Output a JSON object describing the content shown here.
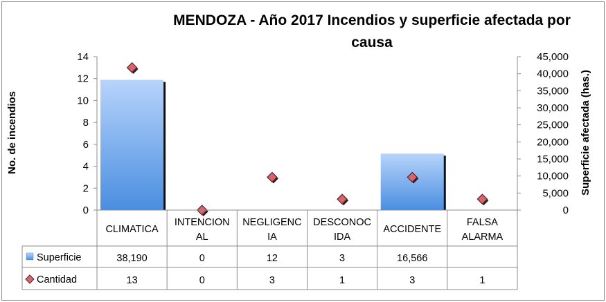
{
  "chart_data": {
    "type": "bar",
    "title_line1": "MENDOZA - Año 2017 Incendios y superficie afectada por",
    "title_line2": "causa",
    "ylabel_left": "No. de incendios",
    "ylabel_right": "Superficie afectada (has.)",
    "ylim_left": [
      0,
      14
    ],
    "yticks_left": [
      "14",
      "12",
      "10",
      "8",
      "6",
      "4",
      "2",
      "0"
    ],
    "ylim_right": [
      0,
      45000
    ],
    "yticks_right": [
      "45,000",
      "40,000",
      "35,000",
      "30,000",
      "25,000",
      "20,000",
      "15,000",
      "10,000",
      "5,000",
      "0"
    ],
    "categories": [
      [
        "CLIMATICA"
      ],
      [
        "INTENCION",
        "AL"
      ],
      [
        "NEGLIGENC",
        "IA"
      ],
      [
        "DESCONOC",
        "IDA"
      ],
      [
        "ACCIDENTE"
      ],
      [
        "FALSA",
        "ALARMA"
      ]
    ],
    "series": [
      {
        "name": "Superficie",
        "kind": "bar",
        "axis": "right",
        "color": "#86b6f2",
        "values": [
          38190,
          0,
          12,
          3,
          16566,
          null
        ],
        "labels": [
          "38,190",
          "0",
          "12",
          "3",
          "16,566",
          ""
        ]
      },
      {
        "name": "Cantidad",
        "kind": "marker",
        "axis": "left",
        "color": "#d8646e",
        "values": [
          13,
          0,
          3,
          1,
          3,
          1
        ],
        "labels": [
          "13",
          "0",
          "3",
          "1",
          "3",
          "1"
        ]
      }
    ],
    "grid": false,
    "legend": "table"
  }
}
